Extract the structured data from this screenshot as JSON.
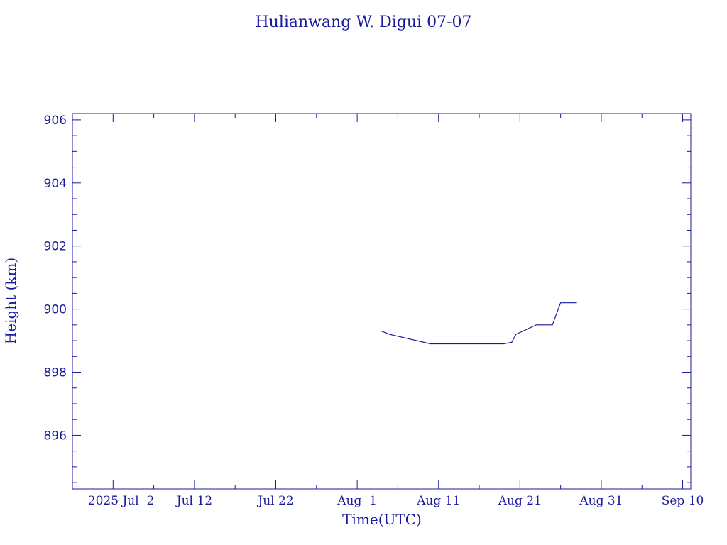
{
  "chart_data": {
    "type": "line",
    "title": "Hulianwang W. Digui 07-07",
    "xlabel": "Time(UTC)",
    "ylabel": "Height (km)",
    "x_tick_labels": [
      "2025 Jul  2",
      "Jul 12",
      "Jul 22",
      "Aug  1",
      "Aug 11",
      "Aug 21",
      "Aug 31",
      "Sep 10"
    ],
    "y_tick_labels": [
      "896",
      "898",
      "900",
      "902",
      "904",
      "906"
    ],
    "xlim": [
      "2025-06-27",
      "2025-09-11"
    ],
    "ylim": [
      894.3,
      906.2
    ],
    "grid": false,
    "series": [
      {
        "color": "#1a1a9e",
        "x": [
          "2025-08-04",
          "2025-08-05",
          "2025-08-10",
          "2025-08-19",
          "2025-08-20",
          "2025-08-20 12:00",
          "2025-08-23",
          "2025-08-25",
          "2025-08-26",
          "2025-08-28"
        ],
        "y": [
          899.3,
          899.2,
          898.9,
          898.9,
          898.95,
          899.2,
          899.5,
          899.5,
          900.2,
          900.2
        ]
      }
    ]
  },
  "colors": {
    "axis": "#1a1a9e",
    "line": "#1a1a9e",
    "background": "#ffffff"
  }
}
